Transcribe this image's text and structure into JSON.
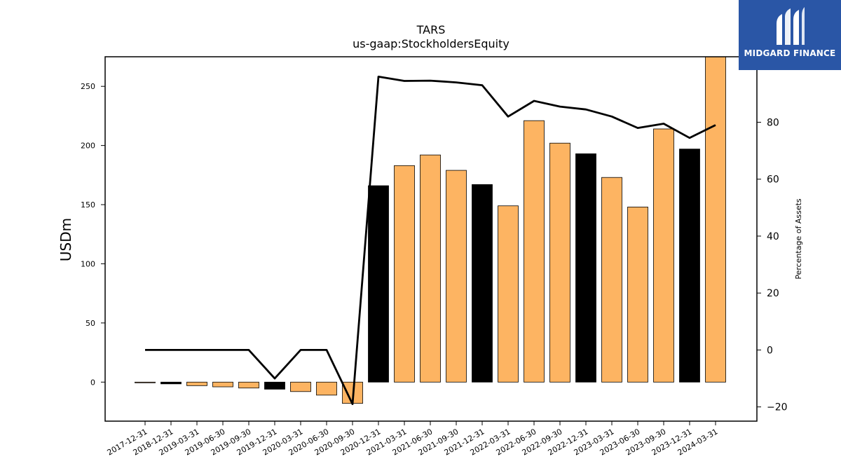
{
  "brand": {
    "name": "MIDGARD FINANCE",
    "color": "#2a56a6"
  },
  "chart_data": {
    "type": "bar",
    "title": "TARS",
    "subtitle": "us-gaap:StockholdersEquity",
    "ylabel": "USDm",
    "y2label": "Percentage of Assets",
    "ylim": [
      -33,
      275
    ],
    "y2lim": [
      -25,
      103
    ],
    "yticks": [
      0,
      50,
      100,
      150,
      200,
      250
    ],
    "y2ticks": [
      -20,
      0,
      20,
      40,
      60,
      80
    ],
    "categories": [
      "2017-12-31",
      "2018-12-31",
      "2019-03-31",
      "2019-06-30",
      "2019-09-30",
      "2019-12-31",
      "2020-03-31",
      "2020-06-30",
      "2020-09-30",
      "2020-12-31",
      "2021-03-31",
      "2021-06-30",
      "2021-09-30",
      "2021-12-31",
      "2022-03-31",
      "2022-06-30",
      "2022-09-30",
      "2022-12-31",
      "2023-03-31",
      "2023-06-30",
      "2023-09-30",
      "2023-12-31",
      "2024-03-31"
    ],
    "series": [
      {
        "type": "bar",
        "values": [
          -0.5,
          -1.5,
          -3,
          -4,
          -5,
          -6,
          -8,
          -11,
          -18,
          166,
          183,
          192,
          179,
          167,
          149,
          221,
          202,
          193,
          173,
          148,
          214,
          197,
          275
        ],
        "colors": [
          "#fdb462",
          "#000000",
          "#fdb462",
          "#fdb462",
          "#fdb462",
          "#000000",
          "#fdb462",
          "#fdb462",
          "#fdb462",
          "#000000",
          "#fdb462",
          "#fdb462",
          "#fdb462",
          "#000000",
          "#fdb462",
          "#fdb462",
          "#fdb462",
          "#000000",
          "#fdb462",
          "#fdb462",
          "#fdb462",
          "#000000",
          "#fdb462"
        ]
      },
      {
        "type": "line",
        "axis": "right",
        "color": "#000000",
        "values": [
          0,
          0,
          0,
          0,
          0,
          -10,
          0,
          0,
          -19,
          96,
          94.5,
          94.6,
          94,
          93,
          82,
          87.5,
          85.5,
          84.5,
          82,
          78,
          79.5,
          74.5,
          79
        ]
      }
    ]
  }
}
